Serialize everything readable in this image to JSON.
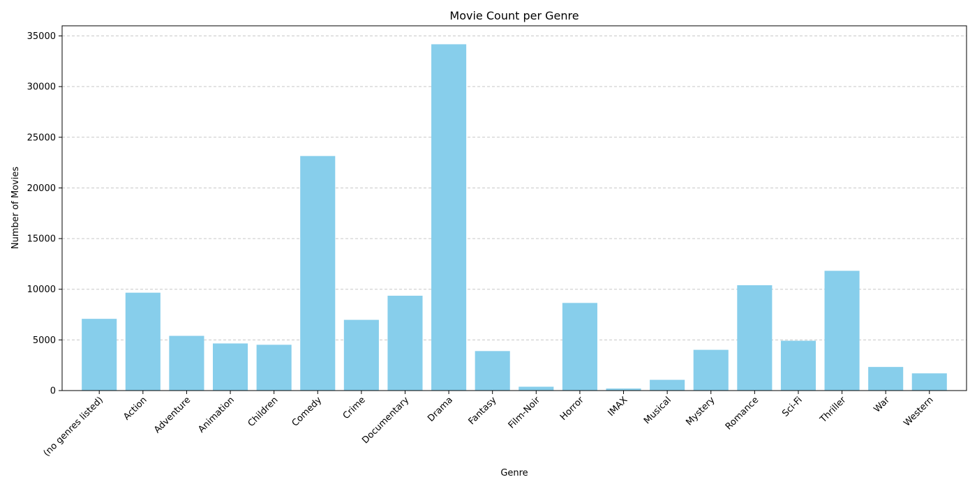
{
  "chart_data": {
    "type": "bar",
    "title": "Movie Count per Genre",
    "xlabel": "Genre",
    "ylabel": "Number of Movies",
    "categories": [
      "(no genres listed)",
      "Action",
      "Adventure",
      "Animation",
      "Children",
      "Comedy",
      "Crime",
      "Documentary",
      "Drama",
      "Fantasy",
      "Film-Noir",
      "Horror",
      "IMAX",
      "Musical",
      "Mystery",
      "Romance",
      "Sci-Fi",
      "Thriller",
      "War",
      "Western"
    ],
    "values": [
      7080,
      9660,
      5400,
      4650,
      4520,
      23150,
      6980,
      9360,
      34180,
      3900,
      380,
      8650,
      200,
      1060,
      4020,
      10400,
      4920,
      11820,
      2330,
      1700
    ],
    "ylim": [
      0,
      36000
    ],
    "yticks": [
      0,
      5000,
      10000,
      15000,
      20000,
      25000,
      30000,
      35000
    ],
    "grid": "y, dashed",
    "colors": {
      "bar": "#87ceeb",
      "grid": "#c8c8c8",
      "axis": "#000000"
    }
  }
}
